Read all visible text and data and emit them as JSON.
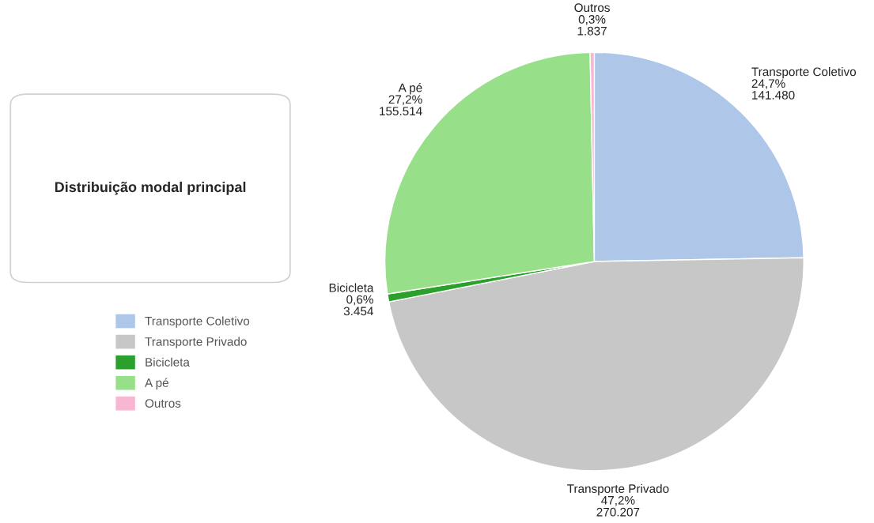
{
  "chart_data": {
    "type": "pie",
    "title": "Distribuição modal principal",
    "categories": [
      "Transporte Coletivo",
      "Transporte Privado",
      "Bicicleta",
      "A pé",
      "Outros"
    ],
    "values": [
      141480,
      270207,
      3454,
      155514,
      1837
    ],
    "value_labels": [
      "24,7%\n141.480",
      "47,2%\n270.207",
      "0,6%\n3.454",
      "27,2%\n155.514",
      "0,3%\n1.837"
    ],
    "colors": [
      "#aec7e8",
      "#c7c7c7",
      "#2ca02c",
      "#98df8a",
      "#f7b6d2"
    ],
    "legend": "left"
  }
}
